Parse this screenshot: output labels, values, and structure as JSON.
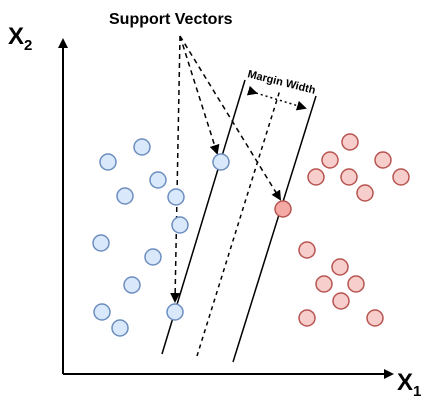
{
  "labels": {
    "support_vectors": "Support Vectors",
    "margin_width": "Margin Width",
    "x_axis_main": "X",
    "x_axis_sub": "1",
    "y_axis_main": "X",
    "y_axis_sub": "2"
  },
  "colors": {
    "class_blue_fill": "#dae8fc",
    "class_blue_stroke": "#6c8ebf",
    "class_red_fill": "#f8cecc",
    "class_red_stroke": "#b85450",
    "support_vector_red_fill": "#f4a9a5",
    "line": "#000000"
  }
}
